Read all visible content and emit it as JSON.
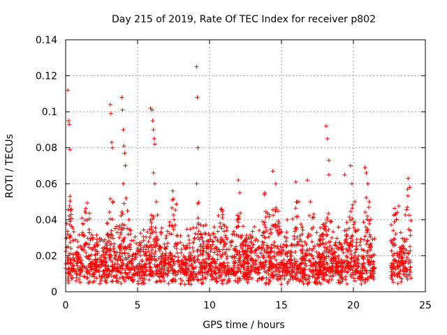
{
  "chart_data": {
    "type": "scatter",
    "title": "Day 215 of 2019, Rate Of TEC Index for receiver p802",
    "xlabel": "GPS time / hours",
    "ylabel": "ROTI / TECUs",
    "xlim": [
      0,
      25
    ],
    "ylim": [
      0,
      0.14
    ],
    "xticks": [
      "0",
      "5",
      "10",
      "15",
      "20",
      "25"
    ],
    "yticks": [
      "0",
      "0.02",
      "0.04",
      "0.06",
      "0.08",
      "0.1",
      "0.12",
      "0.14"
    ],
    "grid": true,
    "marker": "+",
    "color": "#ff0000",
    "series": [
      {
        "x": [
          0.15,
          0.2,
          0.25,
          0.3,
          0.3,
          0.35,
          0.3,
          0.25,
          3.1,
          3.15,
          3.2,
          3.25,
          3.3,
          3.9,
          3.95,
          4.0,
          4.05,
          4.1,
          4.15,
          4.0,
          4.2,
          4.3,
          4.4,
          4.5,
          5.9,
          6.0,
          6.05,
          6.1,
          6.15,
          6.2,
          6.1,
          6.2,
          6.3,
          9.1,
          9.15,
          9.2,
          9.1,
          9.2,
          10.8,
          12.0,
          12.1,
          13.8,
          14.4,
          14.6,
          15.4,
          16.0,
          16.2,
          16.8,
          17.0,
          18.1,
          18.2,
          18.3,
          18.3,
          19.4,
          19.8,
          19.9,
          20.1,
          20.8,
          20.9,
          21.0,
          21.1,
          22.9,
          23.0,
          23.8,
          23.9
        ],
        "y": [
          0.112,
          0.095,
          0.093,
          0.079,
          0.053,
          0.045,
          0.039,
          0.03,
          0.104,
          0.099,
          0.083,
          0.08,
          0.05,
          0.108,
          0.101,
          0.09,
          0.081,
          0.077,
          0.07,
          0.06,
          0.052,
          0.045,
          0.04,
          0.034,
          0.102,
          0.101,
          0.095,
          0.09,
          0.085,
          0.082,
          0.066,
          0.06,
          0.05,
          0.125,
          0.108,
          0.08,
          0.06,
          0.041,
          0.046,
          0.062,
          0.055,
          0.054,
          0.067,
          0.06,
          0.04,
          0.061,
          0.05,
          0.062,
          0.05,
          0.092,
          0.085,
          0.073,
          0.065,
          0.065,
          0.07,
          0.06,
          0.05,
          0.069,
          0.066,
          0.06,
          0.05,
          0.043,
          0.04,
          0.063,
          0.058
        ]
      }
    ]
  }
}
